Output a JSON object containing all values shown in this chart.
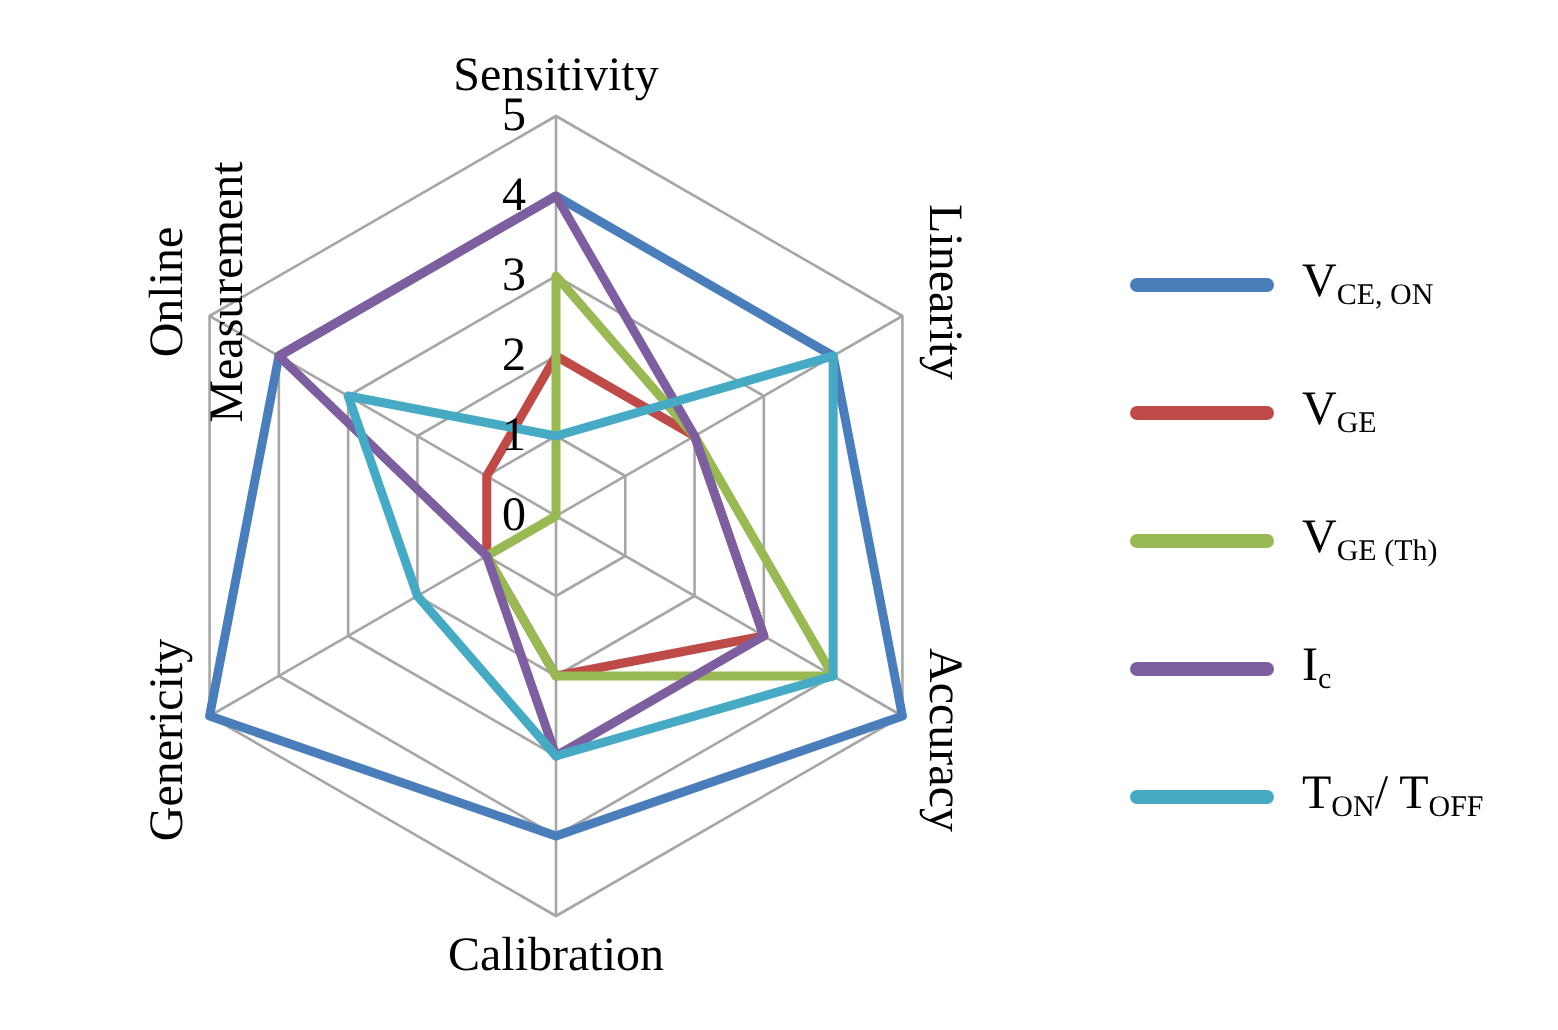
{
  "chart_data": {
    "type": "radar",
    "categories": [
      "Sensitivity",
      "Linearity",
      "Accuracy",
      "Calibration",
      "Genericity",
      "Online Measurement"
    ],
    "ylim": [
      0,
      5
    ],
    "yticks": [
      0,
      1,
      2,
      3,
      4,
      5
    ],
    "grid": true,
    "legend": "right",
    "series": [
      {
        "name": "V$_{CE, ON}$",
        "color": "#4a7ebb",
        "values": [
          4,
          4,
          5,
          4,
          5,
          4
        ]
      },
      {
        "name": "V$_{GE}$",
        "color": "#be4b48",
        "values": [
          2,
          2,
          3,
          2,
          1,
          1
        ]
      },
      {
        "name": "V$_{GE (Th)}$",
        "color": "#98b954",
        "values": [
          3,
          2,
          4,
          2,
          1,
          0
        ]
      },
      {
        "name": "I$_{c}$",
        "color": "#7d5fa0",
        "values": [
          4,
          2,
          3,
          3,
          1,
          4
        ]
      },
      {
        "name": "T$_{ON}$/ T$_{OFF}$",
        "color": "#46aac5",
        "values": [
          1,
          4,
          4,
          3,
          2,
          3
        ]
      }
    ]
  }
}
